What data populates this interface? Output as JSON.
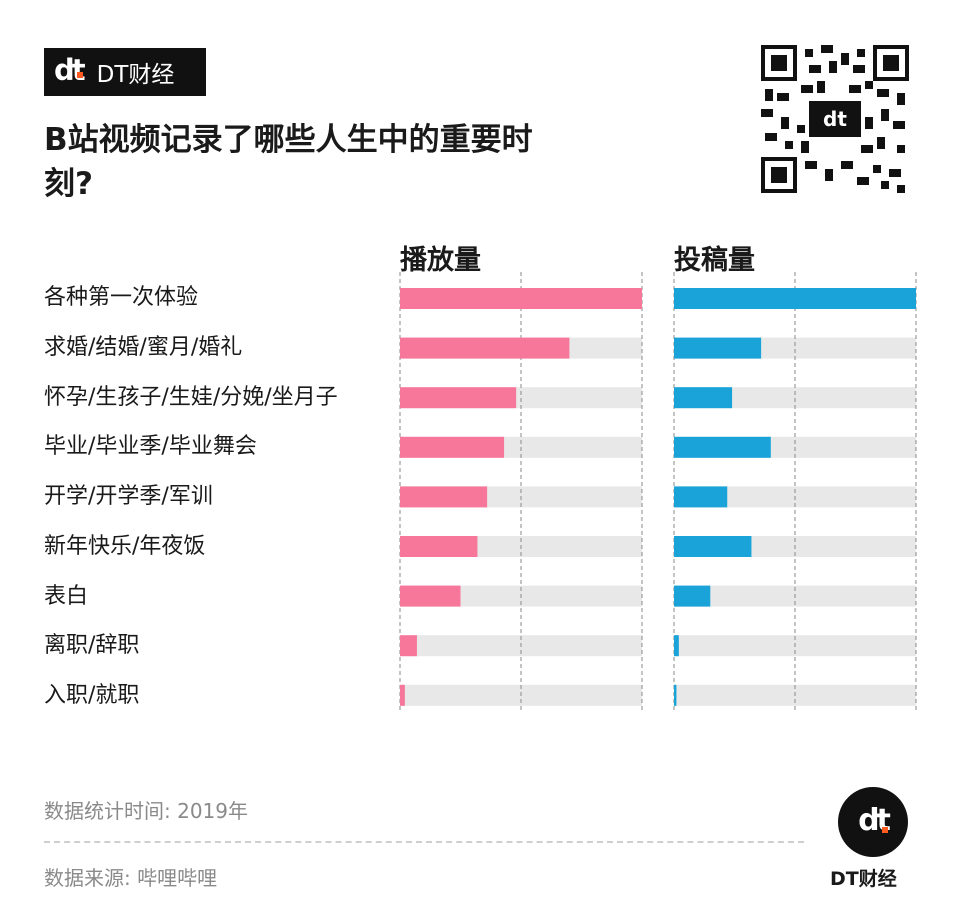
{
  "brand": {
    "logo_text": "dt",
    "name": "DT财经"
  },
  "title": "B站视频记录了哪些人生中的重要时刻?",
  "panels": {
    "left_header": "播放量",
    "right_header": "投稿量"
  },
  "colors": {
    "play": "#f7779a",
    "post": "#1aa3d9",
    "track": "#e8e8e8",
    "grid": "#8a8a8a"
  },
  "chart_data": {
    "type": "bar",
    "orientation": "horizontal",
    "categories": [
      "各种第一次体验",
      "求婚/结婚/蜜月/婚礼",
      "怀孕/生孩子/生娃/分娩/坐月子",
      "毕业/毕业季/毕业舞会",
      "开学/开学季/军训",
      "新年快乐/年夜饭",
      "表白",
      "离职/辞职",
      "入职/就职"
    ],
    "series": [
      {
        "name": "播放量",
        "values": [
          1.0,
          0.7,
          0.48,
          0.43,
          0.36,
          0.32,
          0.25,
          0.07,
          0.02
        ]
      },
      {
        "name": "投稿量",
        "values": [
          1.0,
          0.36,
          0.24,
          0.4,
          0.22,
          0.32,
          0.15,
          0.02,
          0.01
        ]
      }
    ],
    "xlim": [
      0,
      1
    ],
    "grid": true,
    "legend": "none"
  },
  "footer": {
    "stat_time": "数据统计时间: 2019年",
    "source": "数据来源: 哔哩哔哩",
    "brand_name": "DT财经",
    "logo_text": "dt"
  }
}
